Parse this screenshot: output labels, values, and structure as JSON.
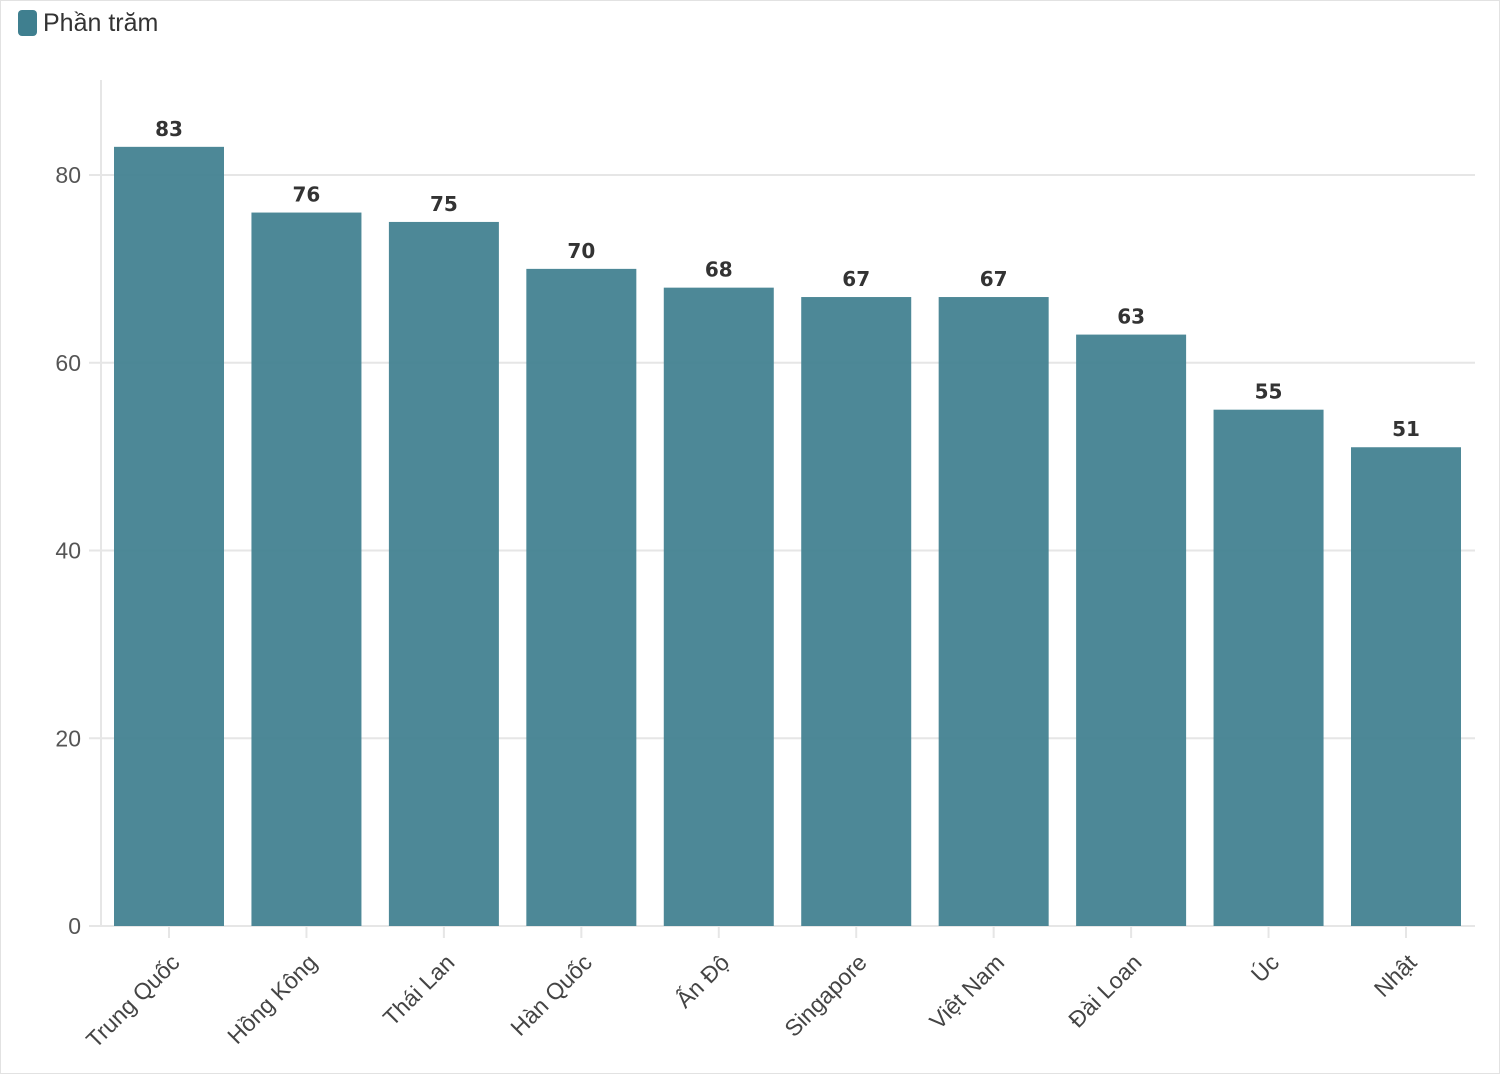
{
  "legend": {
    "label": "Phần trăm",
    "color": "#3f7f8f"
  },
  "colors": {
    "bar": "#3f7f8f",
    "grid": "#e6e6e6",
    "axis": "#cccccc"
  },
  "chart_data": {
    "type": "bar",
    "title": "",
    "xlabel": "",
    "ylabel": "",
    "categories": [
      "Trung Quốc",
      "Hồng Kông",
      "Thái Lan",
      "Hàn Quốc",
      "Ấn Độ",
      "Singapore",
      "Việt Nam",
      "Đài Loan",
      "Úc",
      "Nhật"
    ],
    "series": [
      {
        "name": "Phần trăm",
        "values": [
          83,
          76,
          75,
          70,
          68,
          67,
          67,
          63,
          55,
          51
        ]
      }
    ],
    "ylim": [
      0,
      90
    ],
    "yticks": [
      0,
      20,
      40,
      60,
      80
    ],
    "grid": true,
    "legend_position": "top-left",
    "data_labels": true
  }
}
